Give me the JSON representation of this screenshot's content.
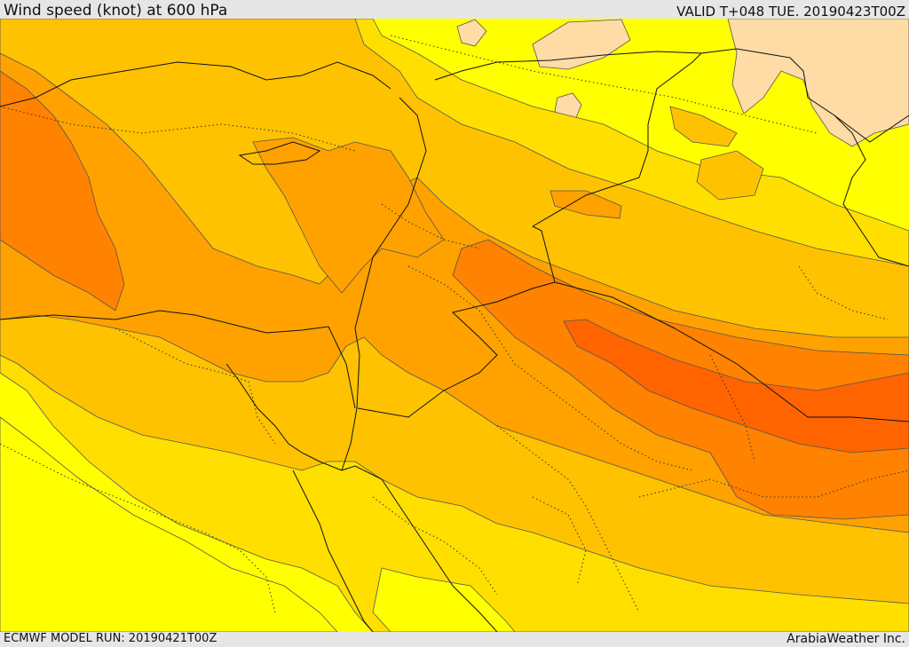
{
  "header": {
    "title": "Wind speed (knot) at 600 hPa",
    "valid": "VALID T+048 TUE. 20190423T00Z"
  },
  "footer": {
    "model_run": "ECMWF MODEL RUN: 20190421T00Z",
    "credit": "ArabiaWeather Inc."
  },
  "palette": {
    "band_lightest": "#ffdca6",
    "band_1": "#ffff00",
    "band_2": "#ffdf00",
    "band_3": "#ffc200",
    "band_4": "#ffa200",
    "band_5": "#ff8200",
    "band_6": "#ff6400",
    "contour": "#555555",
    "border": "#111111"
  }
}
